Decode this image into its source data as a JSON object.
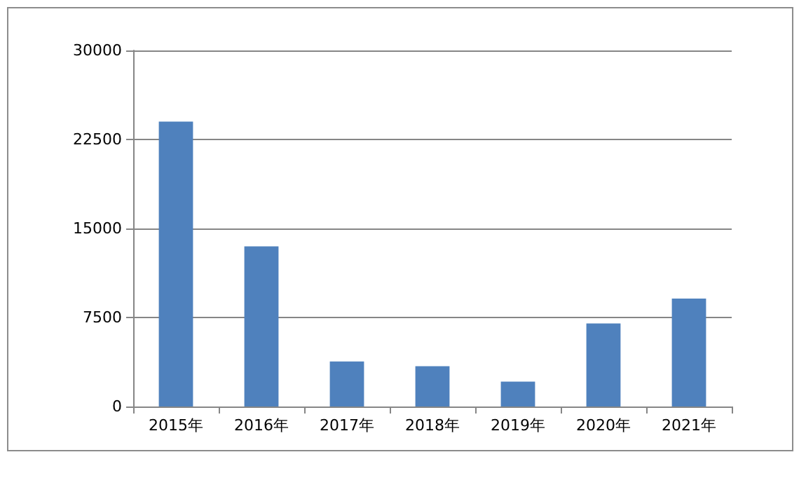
{
  "chart_data": {
    "type": "bar",
    "categories": [
      "2015年",
      "2016年",
      "2017年",
      "2018年",
      "2019年",
      "2020年",
      "2021年"
    ],
    "values": [
      24000,
      13500,
      3800,
      3400,
      2100,
      7000,
      9100
    ],
    "color": "#4f81bd",
    "ylim": [
      0,
      30000
    ],
    "yticks": [
      0,
      7500,
      15000,
      22500,
      30000
    ],
    "grid": "y"
  }
}
